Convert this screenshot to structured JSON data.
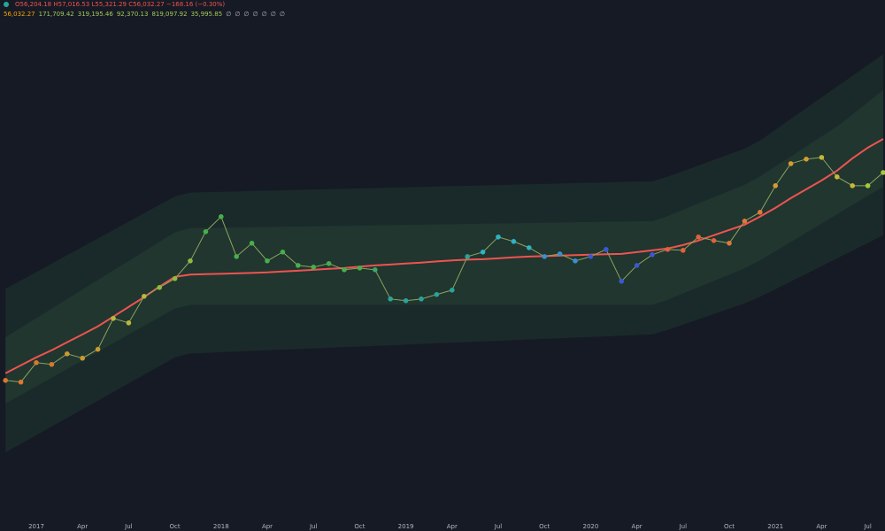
{
  "chart_data": {
    "type": "line",
    "header_ohlc": "O56,204.18 H57,016.53 L55,321.29 C56,032.27 −168.16 (−0.30%)",
    "header_ohlc_color": "#ef5350",
    "header_values": [
      "56,032.27",
      "171,709.42",
      "319,195.46",
      "92,370.13",
      "819,097.92",
      "35,995.85",
      "∅",
      "∅",
      "∅",
      "∅",
      "∅",
      "∅",
      "∅"
    ],
    "header_value_colors": [
      "#f7a600",
      "#a5c95a",
      "#a5c95a",
      "#a5c95a",
      "#a5c95a",
      "#a5c95a",
      "#b2b5be",
      "#b2b5be",
      "#b2b5be",
      "#b2b5be",
      "#b2b5be",
      "#b2b5be",
      "#b2b5be"
    ],
    "categories": [
      null,
      null,
      "2017",
      null,
      null,
      "Apr",
      null,
      null,
      "Jul",
      null,
      null,
      "Oct",
      null,
      null,
      "2018",
      null,
      null,
      "Apr",
      null,
      null,
      "Jul",
      null,
      null,
      "Oct",
      null,
      null,
      "2019",
      null,
      null,
      "Apr",
      null,
      null,
      "Jul",
      null,
      null,
      "Oct",
      null,
      null,
      "2020",
      null,
      null,
      "Apr",
      null,
      null,
      "Jul",
      null,
      null,
      "Oct",
      null,
      null,
      "2021",
      null,
      null,
      "Apr",
      null,
      null,
      "Jul",
      null
    ],
    "log_scale": true,
    "ylim": [
      40,
      1390000
    ],
    "series": [
      {
        "fill": "#1a2a2a",
        "values": [
          4280,
          5060,
          5980,
          7080,
          8380,
          9910,
          11720,
          13870,
          16430,
          19430,
          22990,
          27210,
          29370,
          29630,
          29840,
          30050,
          30310,
          30530,
          30750,
          30960,
          31240,
          31460,
          31680,
          31910,
          32190,
          32420,
          32650,
          32890,
          33170,
          33410,
          33650,
          33890,
          34190,
          34430,
          34680,
          34930,
          35240,
          35490,
          35740,
          35990,
          36310,
          36570,
          36770,
          40380,
          45240,
          50570,
          56550,
          63330,
          70810,
          83490,
          103400,
          128400,
          159400,
          197800,
          245500,
          304200,
          377600,
          468600
        ]
      },
      {
        "fill": "#20362f",
        "values": [
          1625,
          1968,
          2382,
          2885,
          3493,
          4229,
          5121,
          6199,
          7494,
          9074,
          10990,
          13300,
          14460,
          14510,
          14590,
          14640,
          14720,
          14800,
          14850,
          14930,
          15010,
          15070,
          15140,
          15220,
          15280,
          15360,
          15440,
          15490,
          15580,
          15630,
          15710,
          15800,
          15850,
          15940,
          16020,
          16080,
          16160,
          16250,
          16310,
          16390,
          16450,
          16540,
          16600,
          18430,
          20900,
          23700,
          26870,
          30470,
          34550,
          40740,
          49770,
          60810,
          74280,
          90760,
          111000,
          140500,
          179700,
          229900
        ]
      },
      {
        "fill": "#1a2a2a",
        "values": [
          428,
          508,
          605,
          719,
          854,
          1016,
          1206,
          1435,
          1708,
          2028,
          2412,
          2870,
          3085,
          3085,
          3085,
          3085,
          3085,
          3085,
          3085,
          3085,
          3085,
          3085,
          3085,
          3085,
          3085,
          3085,
          3085,
          3085,
          3085,
          3085,
          3085,
          3085,
          3085,
          3085,
          3085,
          3085,
          3085,
          3085,
          3085,
          3085,
          3085,
          3085,
          3085,
          3425,
          3885,
          4404,
          4995,
          5665,
          6424,
          7519,
          9040,
          10890,
          13090,
          15740,
          18960,
          22800,
          27450,
          33000
        ]
      },
      {
        "values": [
          162,
          192,
          228,
          272,
          322,
          384,
          455,
          542,
          645,
          766,
          911,
          1083,
          1173,
          1187,
          1203,
          1218,
          1235,
          1250,
          1266,
          1282,
          1298,
          1314,
          1332,
          1349,
          1366,
          1383,
          1400,
          1418,
          1438,
          1456,
          1474,
          1492,
          1511,
          1530,
          1551,
          1571,
          1590,
          1611,
          1631,
          1651,
          1675,
          1696,
          1717,
          1879,
          2090,
          2324,
          2585,
          2874,
          3197,
          3644,
          4251,
          4961,
          5786,
          6750,
          7873,
          9188,
          10720,
          12500
        ]
      },
      {
        "color": "#ef5350",
        "values": [
          789,
          925,
          1084,
          1250,
          1466,
          1718,
          2018,
          2449,
          2979,
          3622,
          4477,
          5433,
          5689,
          5741,
          5781,
          5834,
          5888,
          5943,
          6053,
          6152,
          6266,
          6383,
          6486,
          6668,
          6839,
          6966,
          7096,
          7228,
          7413,
          7551,
          7674,
          7745,
          7889,
          8035,
          8166,
          8241,
          8318,
          8395,
          8472,
          8551,
          8610,
          8930,
          9247,
          9594,
          10280,
          11250,
          12500,
          13900,
          15450,
          18150,
          21630,
          26300,
          31410,
          37500,
          45600,
          58340,
          72280,
          86100
        ]
      },
      {
        "color": "#8fa35e",
        "values": [
          684,
          661,
          975,
          942,
          1164,
          1067,
          1274,
          2366,
          2163,
          3681,
          4395,
          5248,
          7482,
          13430,
          18150,
          8166,
          10670,
          7482,
          8930,
          6839,
          6607,
          7096,
          6266,
          6486,
          6266,
          3491,
          3373,
          3491,
          3819,
          4169,
          8166,
          8930,
          12080,
          11040,
          9750,
          8166,
          8610,
          7482,
          8166,
          9419,
          4977,
          6839,
          8472,
          9419,
          9247,
          12080,
          11250,
          10670,
          16600,
          19820,
          33730,
          52480,
          57410,
          59430,
          40270,
          33730,
          33730,
          43950
        ],
        "point_colors": [
          "#d9782e",
          "#d9782e",
          "#d9782e",
          "#d9782e",
          "#c99a30",
          "#c99a30",
          "#c99a30",
          "#b8b93a",
          "#b8b93a",
          "#b8b93a",
          "#8dbb3c",
          "#8dbb3c",
          "#8dbb3c",
          "#45b04a",
          "#45b04a",
          "#45b04a",
          "#45b04a",
          "#45b04a",
          "#45b04a",
          "#45b04a",
          "#45b04a",
          "#45b04a",
          "#45b04a",
          "#45b04a",
          "#3aa86a",
          "#2aa39a",
          "#2aa39a",
          "#2aa39a",
          "#2aa39a",
          "#2aa39a",
          "#2aa39a",
          "#2bb3c6",
          "#2bb3c6",
          "#2bb3c6",
          "#2bb3c6",
          "#3a8fd0",
          "#3a8fd0",
          "#3a8fd0",
          "#3a58d6",
          "#3a58d6",
          "#3a58d6",
          "#3a58d6",
          "#3a58d6",
          "#e0623a",
          "#e0623a",
          "#e0623a",
          "#e0623a",
          "#e0783a",
          "#e0783a",
          "#e0783a",
          "#d99a30",
          "#d99a30",
          "#d99a30",
          "#c9b735",
          "#c9b735",
          "#c9b735",
          "#a8c83a",
          "#a8c83a"
        ]
      }
    ]
  }
}
